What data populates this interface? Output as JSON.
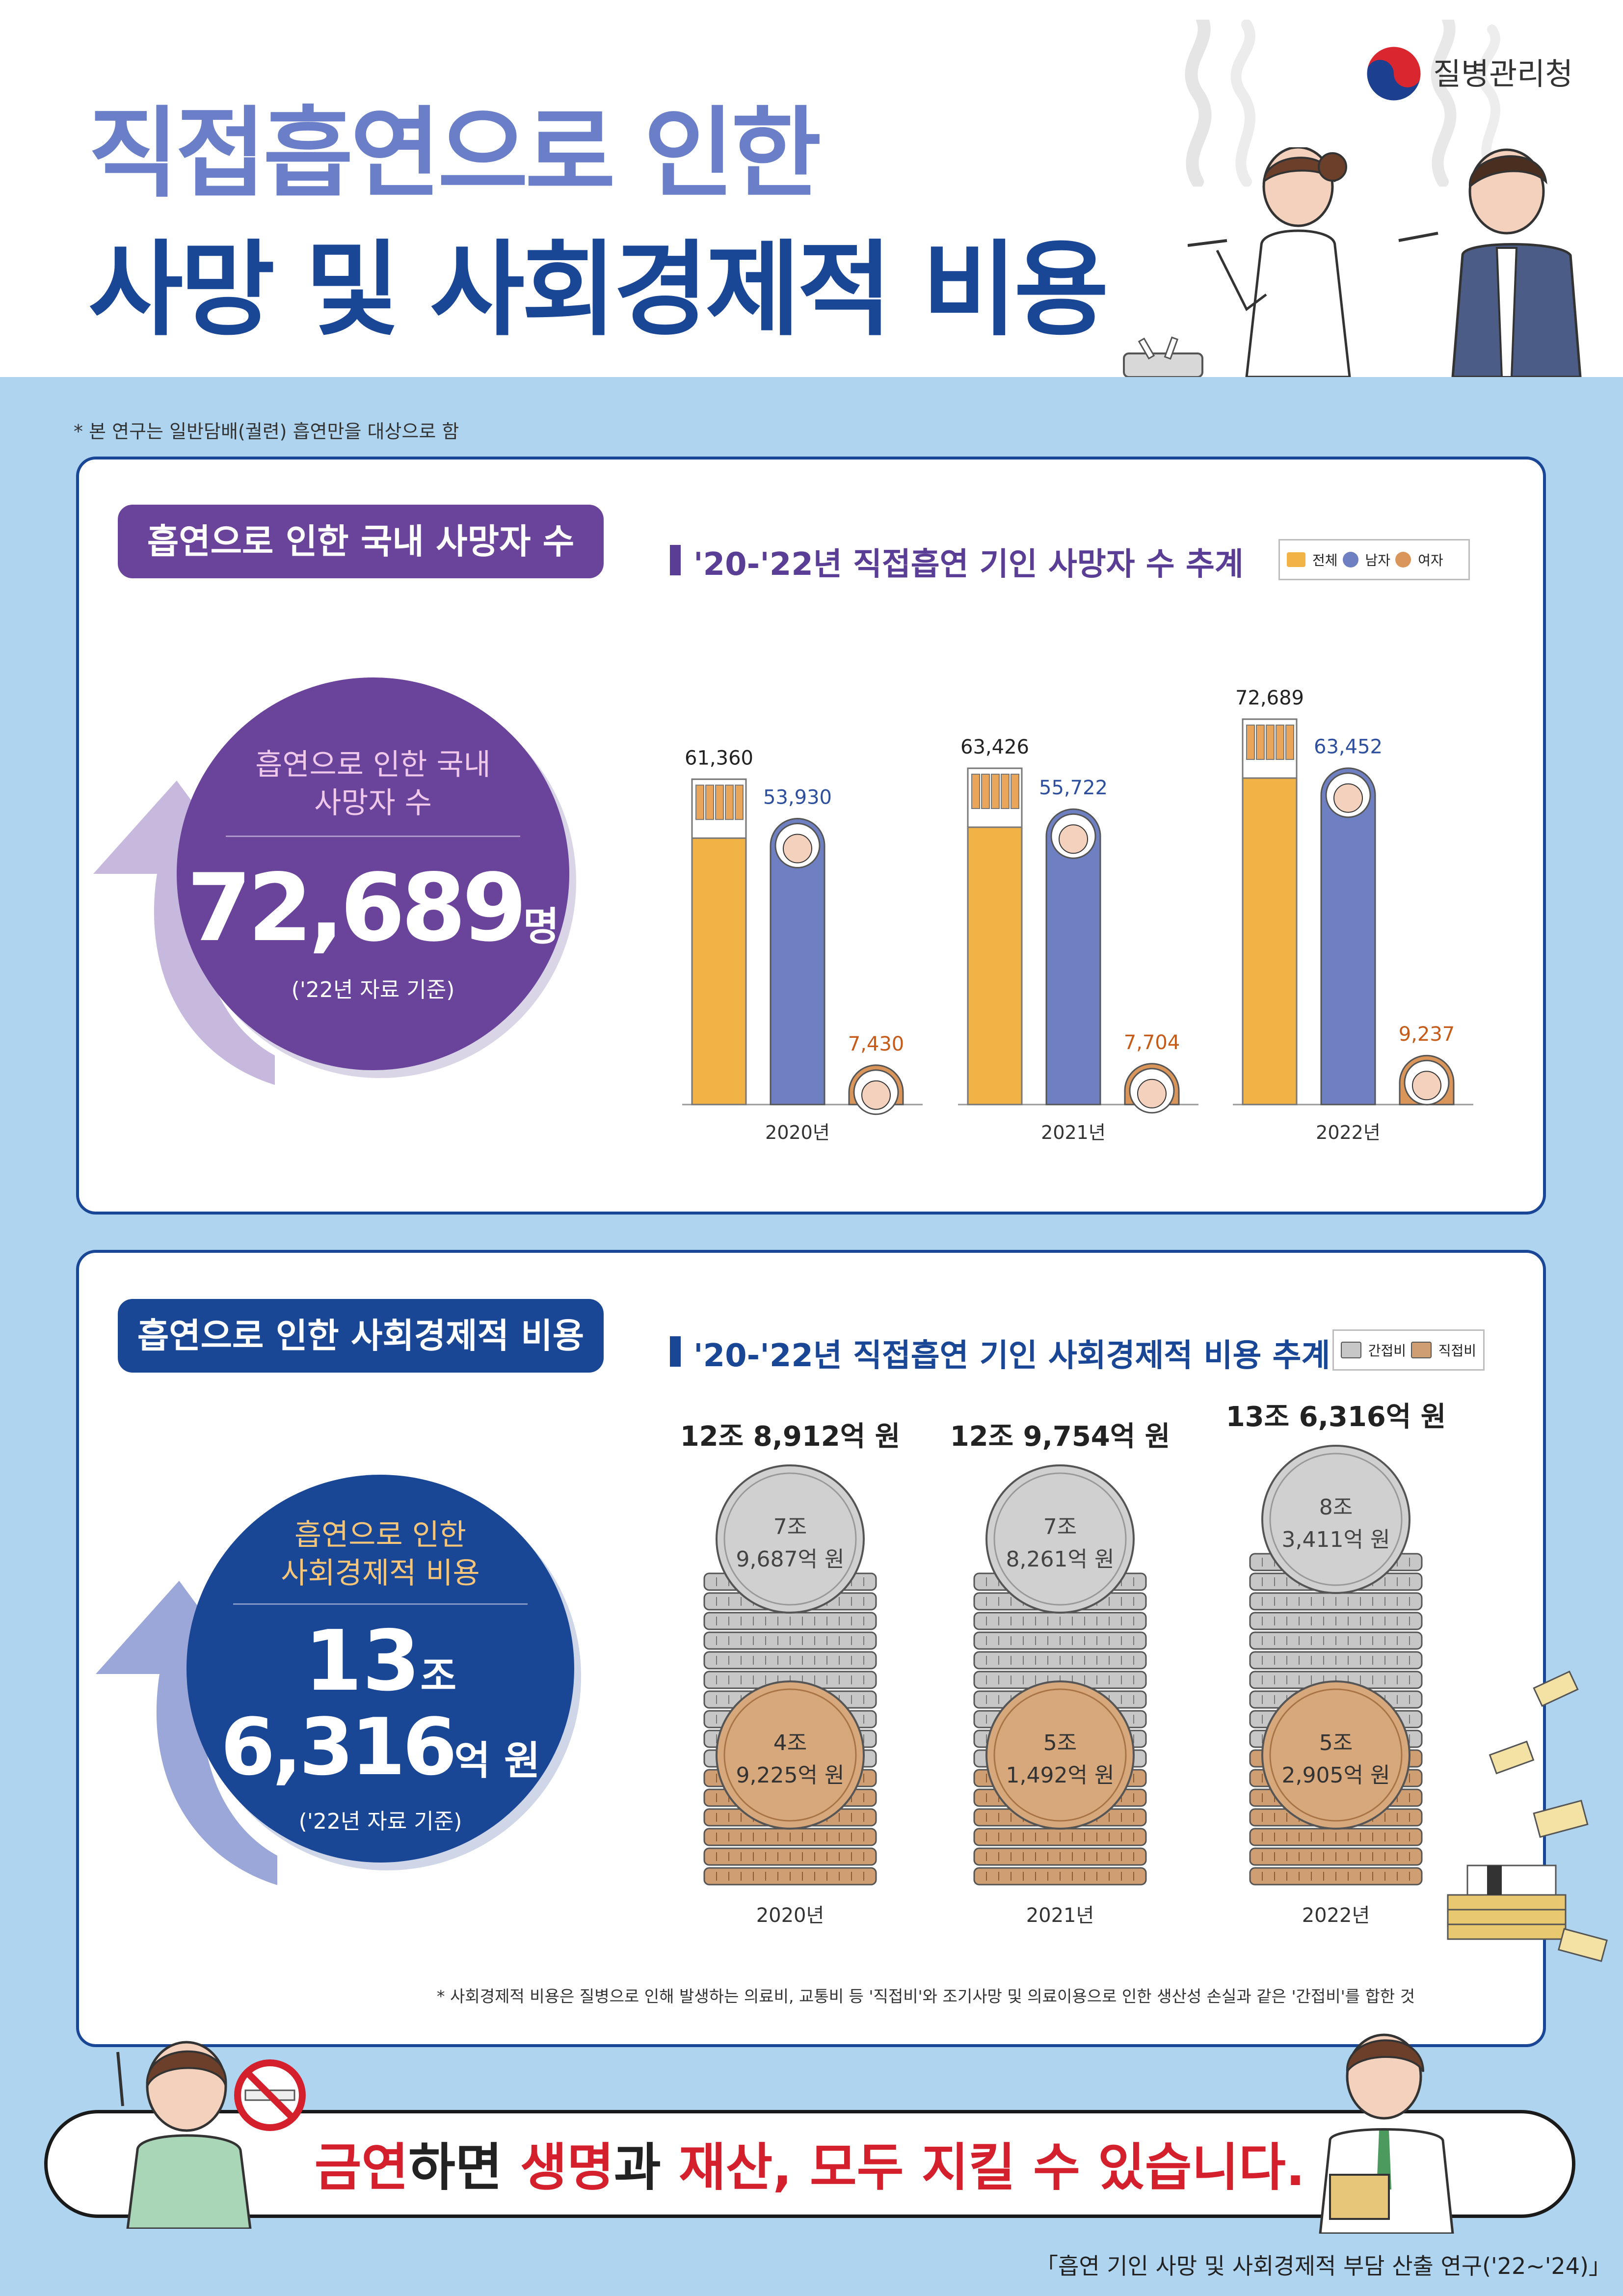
{
  "header": {
    "title_line1": "직접흡연으로 인한",
    "title_line2": "사망 및 사회경제적 비용",
    "org_name": "질병관리청"
  },
  "scope_note": "* 본 연구는 일반담배(궐련) 흡연만을 대상으로 함",
  "deaths": {
    "pill_label": "흡연으로 인한 국내 사망자 수",
    "chart_title": "'20-'22년 직접흡연 기인 사망자 수 추계",
    "legend": [
      "전체",
      "남자",
      "여자"
    ],
    "circle_label_1": "흡연으로 인한 국내",
    "circle_label_2": "사망자 수",
    "circle_value": "72,689",
    "circle_unit": "명",
    "circle_note": "('22년 자료 기준)"
  },
  "costs": {
    "pill_label": "흡연으로 인한 사회경제적 비용",
    "chart_title": "'20-'22년 직접흡연 기인 사회경제적 비용 추계",
    "legend": [
      "간접비",
      "직접비"
    ],
    "circle_label_1": "흡연으로 인한",
    "circle_label_2": "사회경제적 비용",
    "circle_value_1": "13",
    "circle_unit_1": "조",
    "circle_value_2": "6,316",
    "circle_unit_2": "억 원",
    "circle_note": "('22년 자료 기준)",
    "footnote": "* 사회경제적 비용은 질병으로 인해 발생하는 의료비, 교통비 등 '직접비'와 조기사망 및 의료이용으로 인한 생산성 손실과 같은 '간접비'를 합한 것"
  },
  "slogan": {
    "part1": "금연",
    "part2": "하면 ",
    "part3": "생명",
    "part4": "과 ",
    "part5": "재산",
    "part6": ", 모두 지킬 수 있습니다."
  },
  "source": "「흡연 기인 사망 및 사회경제적 부담 산출 연구('22~'24)」",
  "colors": {
    "purple": "#6a449b",
    "navy": "#1a4696",
    "total": "#f1b246",
    "male": "#6f80c2",
    "female": "#d9955a",
    "indirect": "#c7c7c7",
    "direct": "#cf9e72"
  },
  "chart_data": [
    {
      "type": "bar",
      "title": "'20-'22년 직접흡연 기인 사망자 수 추계",
      "categories": [
        "2020년",
        "2021년",
        "2022년"
      ],
      "series": [
        {
          "name": "전체",
          "values": [
            61360,
            63426,
            72689
          ],
          "labels": [
            "61,360",
            "63,426",
            "72,689"
          ]
        },
        {
          "name": "남자",
          "values": [
            53930,
            55722,
            63452
          ],
          "labels": [
            "53,930",
            "55,722",
            "63,452"
          ]
        },
        {
          "name": "여자",
          "values": [
            7430,
            7704,
            9237
          ],
          "labels": [
            "7,430",
            "7,704",
            "9,237"
          ]
        }
      ],
      "ylim": [
        0,
        80000
      ],
      "legend": "top-right"
    },
    {
      "type": "bar",
      "title": "'20-'22년 직접흡연 기인 사회경제적 비용 추계",
      "categories": [
        "2020년",
        "2021년",
        "2022년"
      ],
      "totals": [
        "12조 8,912억 원",
        "12조 9,754억 원",
        "13조 6,316억 원"
      ],
      "series": [
        {
          "name": "간접비",
          "values": [
            79687,
            78261,
            83411
          ],
          "labels_top": [
            "7조",
            "7조",
            "8조"
          ],
          "labels_bottom": [
            "9,687억 원",
            "8,261억 원",
            "3,411억 원"
          ]
        },
        {
          "name": "직접비",
          "values": [
            49225,
            51492,
            52905
          ],
          "labels_top": [
            "4조",
            "5조",
            "5조"
          ],
          "labels_bottom": [
            "9,225억 원",
            "1,492억 원",
            "2,905억 원"
          ]
        }
      ],
      "unit": "억 원",
      "legend": "top-right"
    }
  ]
}
